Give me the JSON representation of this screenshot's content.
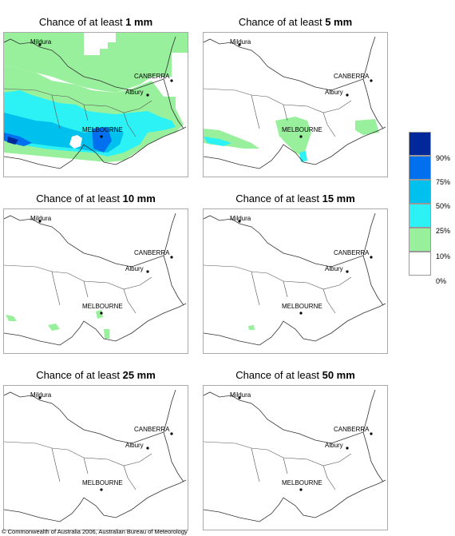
{
  "panels": [
    {
      "prefix": "Chance of at least ",
      "amount": "1 mm",
      "level": 1
    },
    {
      "prefix": "Chance of at least ",
      "amount": "5 mm",
      "level": 2
    },
    {
      "prefix": "Chance of at least ",
      "amount": "10 mm",
      "level": 3
    },
    {
      "prefix": "Chance of at least ",
      "amount": "15 mm",
      "level": 4
    },
    {
      "prefix": "Chance of at least ",
      "amount": "25 mm",
      "level": 5
    },
    {
      "prefix": "Chance of at least ",
      "amount": "50 mm",
      "level": 6
    }
  ],
  "cities": {
    "mildura": "Mildura",
    "canberra": "CANBERRA",
    "albury": "Albury",
    "melbourne": "MELBOURNE"
  },
  "legend": {
    "labels": [
      "90%",
      "75%",
      "50%",
      "25%",
      "10%",
      "0%"
    ],
    "colors": [
      "#00289a",
      "#0070ee",
      "#00c0ee",
      "#2cf2f6",
      "#98f09c",
      "#ffffff"
    ]
  },
  "copyright": "© Commonwealth of Australia 2006, Australian Bureau of Meteorology"
}
